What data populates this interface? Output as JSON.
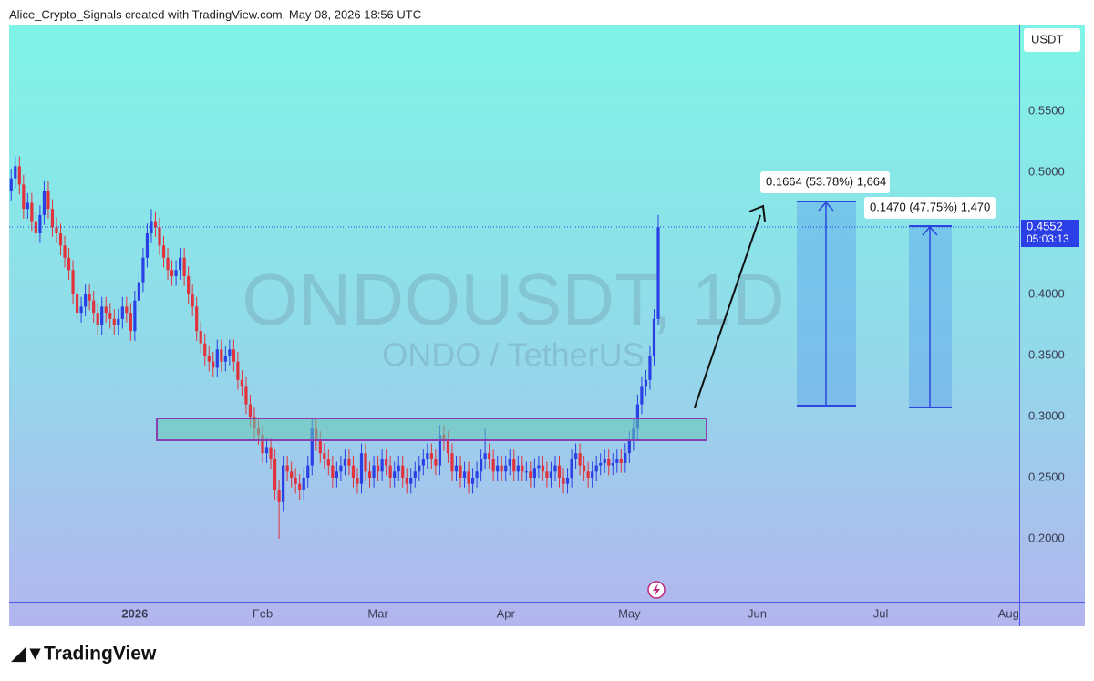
{
  "chart_data": {
    "type": "candlestick",
    "header": "Alice_Crypto_Signals created with TradingView.com, May 08, 2026 18:56 UTC",
    "currency": "USDT",
    "watermark": "ONDOUSDT, 1D",
    "watermark_subtitle": "ONDO / TetherUS",
    "brand": "TradingView",
    "last_price": 0.4552,
    "countdown": "05:03:13",
    "up_color": "#2b3fe6",
    "down_color": "#e2323d",
    "ylim": [
      0.1485,
      0.6209
    ],
    "yticks": [
      {
        "value": 0.2,
        "label": "0.2000"
      },
      {
        "value": 0.25,
        "label": "0.2500"
      },
      {
        "value": 0.3,
        "label": "0.3000"
      },
      {
        "value": 0.35,
        "label": "0.3500"
      },
      {
        "value": 0.4,
        "label": "0.4000"
      },
      {
        "value": 0.5,
        "label": "0.5000"
      },
      {
        "value": 0.55,
        "label": "0.5500"
      }
    ],
    "xlim": [
      -0.5,
      244.6
    ],
    "xticks": [
      {
        "value": 30,
        "label": "2026"
      },
      {
        "value": 61,
        "label": "Feb"
      },
      {
        "value": 89,
        "label": "Mar"
      },
      {
        "value": 120,
        "label": "Apr"
      },
      {
        "value": 150,
        "label": "May"
      },
      {
        "value": 181,
        "label": "Jun"
      },
      {
        "value": 211,
        "label": "Jul"
      },
      {
        "value": 242,
        "label": "Aug"
      }
    ],
    "annotations": [
      {
        "text": "0.1664 (53.78%) 1,664"
      },
      {
        "text": "0.1470 (47.75%) 1,470"
      }
    ],
    "candles": [
      [
        0.485,
        0.503,
        0.477,
        0.495
      ],
      [
        0.495,
        0.513,
        0.487,
        0.505
      ],
      [
        0.505,
        0.513,
        0.482,
        0.49
      ],
      [
        0.49,
        0.498,
        0.462,
        0.47
      ],
      [
        0.47,
        0.483,
        0.462,
        0.475
      ],
      [
        0.475,
        0.483,
        0.452,
        0.46
      ],
      [
        0.46,
        0.468,
        0.442,
        0.45
      ],
      [
        0.45,
        0.473,
        0.442,
        0.465
      ],
      [
        0.465,
        0.493,
        0.457,
        0.485
      ],
      [
        0.485,
        0.493,
        0.462,
        0.47
      ],
      [
        0.47,
        0.478,
        0.447,
        0.455
      ],
      [
        0.455,
        0.463,
        0.442,
        0.45
      ],
      [
        0.45,
        0.458,
        0.432,
        0.44
      ],
      [
        0.44,
        0.448,
        0.422,
        0.43
      ],
      [
        0.43,
        0.438,
        0.412,
        0.42
      ],
      [
        0.42,
        0.428,
        0.392,
        0.4
      ],
      [
        0.4,
        0.408,
        0.377,
        0.385
      ],
      [
        0.385,
        0.398,
        0.377,
        0.39
      ],
      [
        0.39,
        0.408,
        0.382,
        0.4
      ],
      [
        0.4,
        0.408,
        0.387,
        0.395
      ],
      [
        0.395,
        0.403,
        0.377,
        0.385
      ],
      [
        0.385,
        0.393,
        0.367,
        0.375
      ],
      [
        0.375,
        0.398,
        0.367,
        0.39
      ],
      [
        0.39,
        0.398,
        0.377,
        0.385
      ],
      [
        0.385,
        0.393,
        0.372,
        0.38
      ],
      [
        0.38,
        0.388,
        0.367,
        0.375
      ],
      [
        0.375,
        0.388,
        0.367,
        0.38
      ],
      [
        0.38,
        0.398,
        0.372,
        0.39
      ],
      [
        0.39,
        0.398,
        0.377,
        0.385
      ],
      [
        0.385,
        0.393,
        0.362,
        0.37
      ],
      [
        0.37,
        0.403,
        0.362,
        0.395
      ],
      [
        0.395,
        0.418,
        0.387,
        0.41
      ],
      [
        0.41,
        0.438,
        0.402,
        0.43
      ],
      [
        0.43,
        0.458,
        0.422,
        0.45
      ],
      [
        0.45,
        0.47,
        0.442,
        0.46
      ],
      [
        0.46,
        0.468,
        0.447,
        0.455
      ],
      [
        0.455,
        0.463,
        0.432,
        0.44
      ],
      [
        0.44,
        0.448,
        0.422,
        0.43
      ],
      [
        0.43,
        0.438,
        0.412,
        0.42
      ],
      [
        0.42,
        0.428,
        0.407,
        0.415
      ],
      [
        0.415,
        0.428,
        0.407,
        0.42
      ],
      [
        0.42,
        0.438,
        0.412,
        0.43
      ],
      [
        0.43,
        0.438,
        0.407,
        0.415
      ],
      [
        0.415,
        0.423,
        0.392,
        0.4
      ],
      [
        0.4,
        0.408,
        0.382,
        0.39
      ],
      [
        0.39,
        0.398,
        0.362,
        0.37
      ],
      [
        0.37,
        0.378,
        0.352,
        0.36
      ],
      [
        0.36,
        0.368,
        0.342,
        0.35
      ],
      [
        0.35,
        0.358,
        0.337,
        0.345
      ],
      [
        0.345,
        0.353,
        0.332,
        0.34
      ],
      [
        0.34,
        0.363,
        0.332,
        0.355
      ],
      [
        0.355,
        0.363,
        0.337,
        0.345
      ],
      [
        0.345,
        0.358,
        0.337,
        0.35
      ],
      [
        0.35,
        0.363,
        0.342,
        0.355
      ],
      [
        0.355,
        0.363,
        0.337,
        0.345
      ],
      [
        0.345,
        0.353,
        0.322,
        0.33
      ],
      [
        0.33,
        0.338,
        0.317,
        0.325
      ],
      [
        0.325,
        0.333,
        0.302,
        0.31
      ],
      [
        0.31,
        0.318,
        0.292,
        0.3
      ],
      [
        0.3,
        0.308,
        0.282,
        0.29
      ],
      [
        0.29,
        0.298,
        0.277,
        0.285
      ],
      [
        0.285,
        0.293,
        0.262,
        0.27
      ],
      [
        0.27,
        0.283,
        0.262,
        0.275
      ],
      [
        0.275,
        0.283,
        0.257,
        0.265
      ],
      [
        0.265,
        0.273,
        0.232,
        0.24
      ],
      [
        0.24,
        0.248,
        0.2,
        0.23
      ],
      [
        0.23,
        0.268,
        0.222,
        0.26
      ],
      [
        0.26,
        0.268,
        0.247,
        0.255
      ],
      [
        0.255,
        0.263,
        0.242,
        0.25
      ],
      [
        0.25,
        0.258,
        0.237,
        0.245
      ],
      [
        0.245,
        0.253,
        0.232,
        0.24
      ],
      [
        0.24,
        0.258,
        0.232,
        0.25
      ],
      [
        0.25,
        0.268,
        0.242,
        0.26
      ],
      [
        0.26,
        0.298,
        0.252,
        0.29
      ],
      [
        0.29,
        0.298,
        0.272,
        0.28
      ],
      [
        0.28,
        0.288,
        0.262,
        0.27
      ],
      [
        0.27,
        0.278,
        0.257,
        0.265
      ],
      [
        0.265,
        0.273,
        0.252,
        0.26
      ],
      [
        0.26,
        0.268,
        0.242,
        0.25
      ],
      [
        0.25,
        0.263,
        0.242,
        0.255
      ],
      [
        0.255,
        0.268,
        0.247,
        0.26
      ],
      [
        0.26,
        0.273,
        0.252,
        0.265
      ],
      [
        0.265,
        0.273,
        0.252,
        0.26
      ],
      [
        0.26,
        0.268,
        0.242,
        0.25
      ],
      [
        0.25,
        0.258,
        0.237,
        0.245
      ],
      [
        0.245,
        0.278,
        0.237,
        0.27
      ],
      [
        0.27,
        0.278,
        0.247,
        0.255
      ],
      [
        0.255,
        0.263,
        0.242,
        0.25
      ],
      [
        0.25,
        0.268,
        0.242,
        0.26
      ],
      [
        0.26,
        0.268,
        0.247,
        0.255
      ],
      [
        0.255,
        0.273,
        0.247,
        0.265
      ],
      [
        0.265,
        0.273,
        0.252,
        0.26
      ],
      [
        0.26,
        0.268,
        0.242,
        0.25
      ],
      [
        0.25,
        0.263,
        0.242,
        0.255
      ],
      [
        0.255,
        0.268,
        0.247,
        0.26
      ],
      [
        0.26,
        0.268,
        0.242,
        0.25
      ],
      [
        0.25,
        0.258,
        0.237,
        0.245
      ],
      [
        0.245,
        0.258,
        0.237,
        0.25
      ],
      [
        0.25,
        0.263,
        0.242,
        0.255
      ],
      [
        0.255,
        0.268,
        0.247,
        0.26
      ],
      [
        0.26,
        0.273,
        0.252,
        0.265
      ],
      [
        0.265,
        0.278,
        0.257,
        0.27
      ],
      [
        0.27,
        0.278,
        0.257,
        0.265
      ],
      [
        0.265,
        0.273,
        0.252,
        0.26
      ],
      [
        0.26,
        0.293,
        0.252,
        0.285
      ],
      [
        0.285,
        0.293,
        0.272,
        0.28
      ],
      [
        0.28,
        0.288,
        0.262,
        0.27
      ],
      [
        0.27,
        0.278,
        0.247,
        0.255
      ],
      [
        0.255,
        0.268,
        0.247,
        0.26
      ],
      [
        0.26,
        0.268,
        0.242,
        0.25
      ],
      [
        0.25,
        0.263,
        0.242,
        0.255
      ],
      [
        0.255,
        0.263,
        0.237,
        0.245
      ],
      [
        0.245,
        0.258,
        0.237,
        0.25
      ],
      [
        0.25,
        0.263,
        0.242,
        0.255
      ],
      [
        0.255,
        0.273,
        0.247,
        0.265
      ],
      [
        0.265,
        0.29,
        0.257,
        0.27
      ],
      [
        0.27,
        0.278,
        0.257,
        0.265
      ],
      [
        0.265,
        0.273,
        0.247,
        0.255
      ],
      [
        0.255,
        0.268,
        0.247,
        0.26
      ],
      [
        0.26,
        0.268,
        0.247,
        0.255
      ],
      [
        0.255,
        0.268,
        0.247,
        0.26
      ],
      [
        0.26,
        0.273,
        0.252,
        0.265
      ],
      [
        0.265,
        0.273,
        0.247,
        0.255
      ],
      [
        0.255,
        0.268,
        0.247,
        0.26
      ],
      [
        0.26,
        0.268,
        0.247,
        0.255
      ],
      [
        0.255,
        0.263,
        0.247,
        0.255
      ],
      [
        0.255,
        0.263,
        0.242,
        0.25
      ],
      [
        0.25,
        0.266,
        0.242,
        0.258
      ],
      [
        0.258,
        0.268,
        0.25,
        0.26
      ],
      [
        0.26,
        0.268,
        0.247,
        0.255
      ],
      [
        0.255,
        0.263,
        0.242,
        0.25
      ],
      [
        0.25,
        0.263,
        0.242,
        0.255
      ],
      [
        0.255,
        0.268,
        0.247,
        0.26
      ],
      [
        0.26,
        0.268,
        0.242,
        0.25
      ],
      [
        0.25,
        0.258,
        0.237,
        0.245
      ],
      [
        0.245,
        0.258,
        0.237,
        0.25
      ],
      [
        0.25,
        0.273,
        0.242,
        0.265
      ],
      [
        0.265,
        0.278,
        0.257,
        0.27
      ],
      [
        0.27,
        0.278,
        0.252,
        0.26
      ],
      [
        0.26,
        0.268,
        0.247,
        0.255
      ],
      [
        0.255,
        0.263,
        0.242,
        0.25
      ],
      [
        0.25,
        0.263,
        0.242,
        0.255
      ],
      [
        0.255,
        0.268,
        0.247,
        0.26
      ],
      [
        0.26,
        0.27,
        0.252,
        0.262
      ],
      [
        0.262,
        0.273,
        0.254,
        0.265
      ],
      [
        0.265,
        0.273,
        0.252,
        0.26
      ],
      [
        0.26,
        0.27,
        0.252,
        0.262
      ],
      [
        0.262,
        0.273,
        0.254,
        0.265
      ],
      [
        0.265,
        0.273,
        0.254,
        0.262
      ],
      [
        0.262,
        0.278,
        0.254,
        0.27
      ],
      [
        0.27,
        0.288,
        0.262,
        0.28
      ],
      [
        0.28,
        0.298,
        0.272,
        0.29
      ],
      [
        0.29,
        0.318,
        0.282,
        0.31
      ],
      [
        0.31,
        0.333,
        0.302,
        0.325
      ],
      [
        0.325,
        0.338,
        0.317,
        0.33
      ],
      [
        0.33,
        0.358,
        0.322,
        0.35
      ],
      [
        0.35,
        0.388,
        0.342,
        0.38
      ],
      [
        0.38,
        0.465,
        0.375,
        0.455
      ]
    ]
  }
}
